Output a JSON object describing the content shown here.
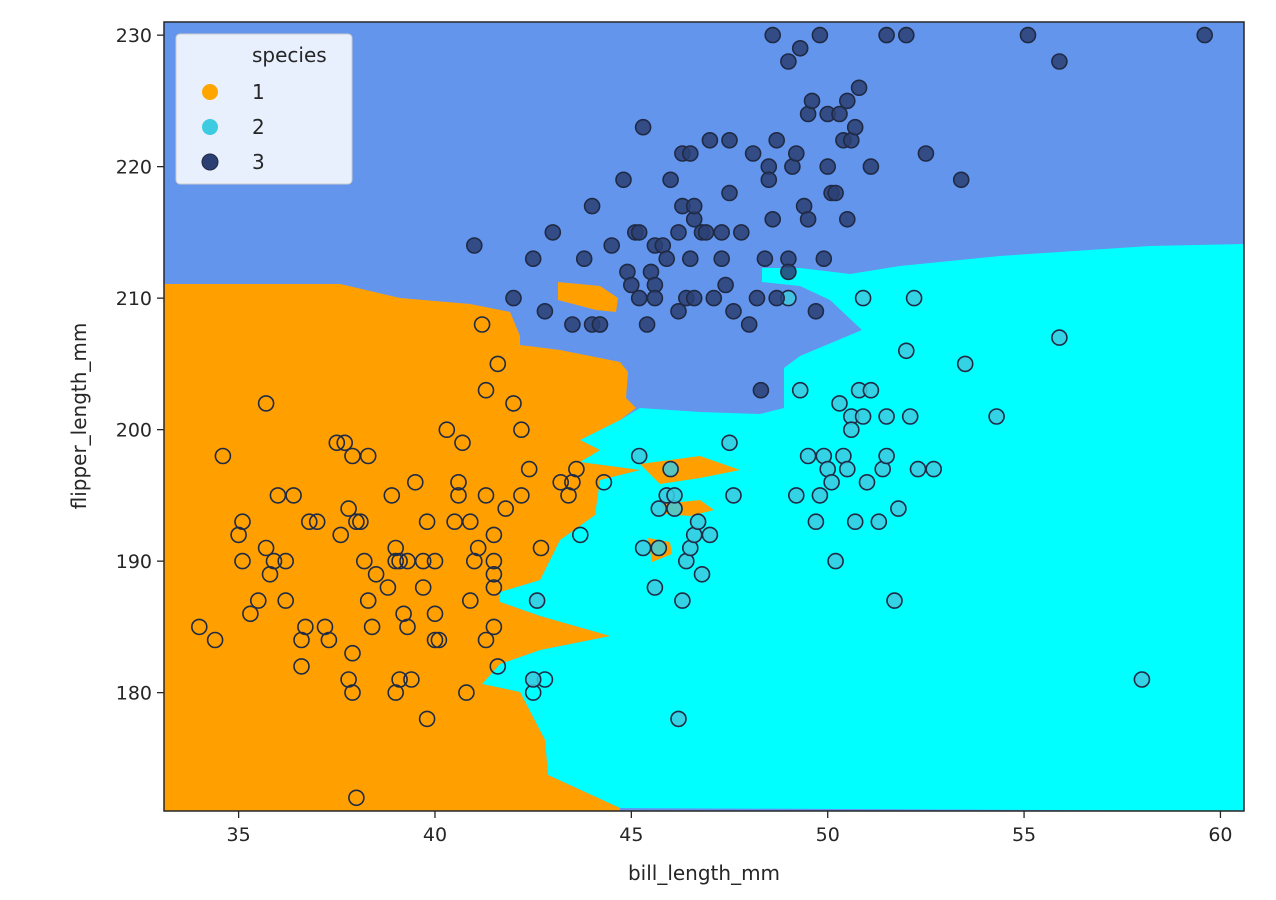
{
  "chart_data": {
    "type": "scatter",
    "title": "",
    "xlabel": "bill_length_mm",
    "ylabel": "flipper_length_mm",
    "xlim": [
      33.1,
      60.6
    ],
    "ylim": [
      171,
      231
    ],
    "xticks": [
      35,
      40,
      45,
      50,
      55,
      60
    ],
    "yticks": [
      180,
      190,
      200,
      210,
      220,
      230
    ],
    "grid": false,
    "legend": {
      "title": "species",
      "placement": "top-left"
    },
    "background_regions": [
      {
        "class": "1",
        "color": "#ffa000"
      },
      {
        "class": "2",
        "color": "#00ffff"
      },
      {
        "class": "3",
        "color": "#6495ed"
      }
    ],
    "series": [
      {
        "name": "1",
        "color": "#ffa500",
        "points": [
          [
            34.0,
            185
          ],
          [
            34.4,
            184
          ],
          [
            34.6,
            198
          ],
          [
            35.1,
            193
          ],
          [
            35.0,
            192
          ],
          [
            35.1,
            190
          ],
          [
            35.3,
            186
          ],
          [
            35.5,
            187
          ],
          [
            35.7,
            191
          ],
          [
            35.7,
            202
          ],
          [
            35.8,
            189
          ],
          [
            35.9,
            190
          ],
          [
            36.0,
            195
          ],
          [
            36.2,
            190
          ],
          [
            36.2,
            187
          ],
          [
            36.4,
            195
          ],
          [
            36.6,
            184
          ],
          [
            36.6,
            182
          ],
          [
            36.7,
            185
          ],
          [
            36.8,
            193
          ],
          [
            37.0,
            193
          ],
          [
            37.2,
            185
          ],
          [
            37.3,
            184
          ],
          [
            37.5,
            199
          ],
          [
            37.6,
            192
          ],
          [
            37.7,
            199
          ],
          [
            37.8,
            194
          ],
          [
            37.8,
            181
          ],
          [
            37.9,
            198
          ],
          [
            38.0,
            193
          ],
          [
            37.9,
            180
          ],
          [
            37.9,
            183
          ],
          [
            38.1,
            193
          ],
          [
            38.2,
            190
          ],
          [
            38.3,
            198
          ],
          [
            38.3,
            187
          ],
          [
            38.4,
            185
          ],
          [
            38.5,
            189
          ],
          [
            38.8,
            188
          ],
          [
            38.9,
            195
          ],
          [
            39.0,
            190
          ],
          [
            39.0,
            191
          ],
          [
            39.1,
            190
          ],
          [
            39.0,
            180
          ],
          [
            39.1,
            181
          ],
          [
            39.3,
            185
          ],
          [
            39.2,
            186
          ],
          [
            39.3,
            190
          ],
          [
            39.4,
            181
          ],
          [
            39.5,
            196
          ],
          [
            39.7,
            190
          ],
          [
            39.7,
            188
          ],
          [
            39.8,
            178
          ],
          [
            40.0,
            190
          ],
          [
            40.0,
            186
          ],
          [
            39.8,
            193
          ],
          [
            40.0,
            184
          ],
          [
            40.1,
            184
          ],
          [
            40.3,
            200
          ],
          [
            40.5,
            193
          ],
          [
            40.6,
            196
          ],
          [
            40.6,
            195
          ],
          [
            40.8,
            180
          ],
          [
            40.9,
            193
          ],
          [
            40.9,
            187
          ],
          [
            40.7,
            199
          ],
          [
            41.0,
            190
          ],
          [
            41.1,
            191
          ],
          [
            41.2,
            208
          ],
          [
            41.3,
            195
          ],
          [
            41.3,
            203
          ],
          [
            41.3,
            184
          ],
          [
            41.5,
            192
          ],
          [
            41.5,
            190
          ],
          [
            41.5,
            189
          ],
          [
            41.5,
            188
          ],
          [
            41.6,
            205
          ],
          [
            41.6,
            182
          ],
          [
            41.8,
            194
          ],
          [
            41.5,
            185
          ],
          [
            42.0,
            202
          ],
          [
            42.2,
            195
          ],
          [
            42.2,
            200
          ],
          [
            42.4,
            197
          ],
          [
            42.5,
            180
          ],
          [
            42.7,
            191
          ],
          [
            42.8,
            181
          ],
          [
            43.2,
            196
          ],
          [
            43.4,
            195
          ],
          [
            43.5,
            196
          ],
          [
            43.6,
            197
          ],
          [
            43.7,
            192
          ],
          [
            44.2,
            208
          ],
          [
            44.3,
            196
          ],
          [
            38.0,
            172
          ]
        ]
      },
      {
        "name": "2",
        "color": "#3ccbe0",
        "points": [
          [
            45.3,
            191
          ],
          [
            45.2,
            198
          ],
          [
            45.6,
            188
          ],
          [
            45.7,
            191
          ],
          [
            45.7,
            194
          ],
          [
            45.9,
            195
          ],
          [
            46.0,
            197
          ],
          [
            46.1,
            194
          ],
          [
            46.1,
            195
          ],
          [
            46.3,
            187
          ],
          [
            46.2,
            178
          ],
          [
            46.4,
            190
          ],
          [
            46.5,
            191
          ],
          [
            46.6,
            192
          ],
          [
            46.7,
            193
          ],
          [
            46.8,
            189
          ],
          [
            47.0,
            192
          ],
          [
            47.5,
            199
          ],
          [
            47.6,
            195
          ],
          [
            42.6,
            187
          ],
          [
            42.5,
            181
          ],
          [
            49.0,
            210
          ],
          [
            49.2,
            195
          ],
          [
            49.3,
            203
          ],
          [
            49.5,
            198
          ],
          [
            49.7,
            193
          ],
          [
            49.8,
            195
          ],
          [
            49.9,
            198
          ],
          [
            50.0,
            197
          ],
          [
            50.1,
            196
          ],
          [
            50.2,
            190
          ],
          [
            50.3,
            202
          ],
          [
            50.4,
            198
          ],
          [
            50.5,
            197
          ],
          [
            50.6,
            201
          ],
          [
            50.6,
            200
          ],
          [
            50.7,
            193
          ],
          [
            50.8,
            203
          ],
          [
            50.9,
            210
          ],
          [
            50.9,
            201
          ],
          [
            51.0,
            196
          ],
          [
            51.1,
            203
          ],
          [
            51.3,
            193
          ],
          [
            51.4,
            197
          ],
          [
            51.5,
            198
          ],
          [
            51.5,
            201
          ],
          [
            51.7,
            187
          ],
          [
            51.8,
            194
          ],
          [
            52.0,
            206
          ],
          [
            52.1,
            201
          ],
          [
            52.2,
            210
          ],
          [
            52.3,
            197
          ],
          [
            52.7,
            197
          ],
          [
            53.5,
            205
          ],
          [
            54.3,
            201
          ],
          [
            55.9,
            207
          ],
          [
            58.0,
            181
          ]
        ]
      },
      {
        "name": "3",
        "color": "#2b3f73",
        "points": [
          [
            41.0,
            214
          ],
          [
            42.0,
            210
          ],
          [
            42.5,
            213
          ],
          [
            42.8,
            209
          ],
          [
            43.0,
            215
          ],
          [
            43.5,
            208
          ],
          [
            43.8,
            213
          ],
          [
            44.0,
            217
          ],
          [
            44.0,
            208
          ],
          [
            44.2,
            208
          ],
          [
            44.5,
            214
          ],
          [
            44.8,
            219
          ],
          [
            44.9,
            212
          ],
          [
            45.0,
            211
          ],
          [
            45.1,
            215
          ],
          [
            45.2,
            210
          ],
          [
            45.2,
            215
          ],
          [
            45.3,
            223
          ],
          [
            45.4,
            208
          ],
          [
            45.5,
            212
          ],
          [
            45.6,
            214
          ],
          [
            45.6,
            211
          ],
          [
            45.6,
            210
          ],
          [
            45.8,
            214
          ],
          [
            45.9,
            213
          ],
          [
            46.0,
            219
          ],
          [
            46.2,
            215
          ],
          [
            46.3,
            221
          ],
          [
            46.3,
            217
          ],
          [
            46.2,
            209
          ],
          [
            46.4,
            210
          ],
          [
            46.5,
            221
          ],
          [
            46.6,
            216
          ],
          [
            46.5,
            213
          ],
          [
            46.6,
            210
          ],
          [
            46.6,
            217
          ],
          [
            46.8,
            215
          ],
          [
            46.9,
            215
          ],
          [
            47.0,
            222
          ],
          [
            47.1,
            210
          ],
          [
            47.3,
            213
          ],
          [
            47.3,
            215
          ],
          [
            47.4,
            211
          ],
          [
            47.5,
            222
          ],
          [
            47.5,
            218
          ],
          [
            47.6,
            209
          ],
          [
            47.8,
            215
          ],
          [
            48.0,
            208
          ],
          [
            48.1,
            221
          ],
          [
            48.2,
            210
          ],
          [
            48.4,
            213
          ],
          [
            48.5,
            220
          ],
          [
            48.5,
            219
          ],
          [
            48.6,
            230
          ],
          [
            48.6,
            216
          ],
          [
            48.7,
            222
          ],
          [
            48.7,
            210
          ],
          [
            49.0,
            213
          ],
          [
            49.0,
            228
          ],
          [
            49.0,
            212
          ],
          [
            49.1,
            220
          ],
          [
            49.2,
            221
          ],
          [
            49.3,
            229
          ],
          [
            49.4,
            217
          ],
          [
            49.5,
            216
          ],
          [
            49.5,
            224
          ],
          [
            49.6,
            225
          ],
          [
            49.7,
            209
          ],
          [
            49.8,
            230
          ],
          [
            49.9,
            213
          ],
          [
            50.0,
            220
          ],
          [
            50.0,
            224
          ],
          [
            50.1,
            218
          ],
          [
            50.2,
            218
          ],
          [
            50.3,
            224
          ],
          [
            50.4,
            222
          ],
          [
            50.5,
            225
          ],
          [
            50.5,
            216
          ],
          [
            50.6,
            222
          ],
          [
            50.7,
            223
          ],
          [
            50.8,
            226
          ],
          [
            51.1,
            220
          ],
          [
            52.0,
            230
          ],
          [
            52.5,
            221
          ],
          [
            51.5,
            230
          ],
          [
            53.4,
            219
          ],
          [
            55.1,
            230
          ],
          [
            55.9,
            228
          ],
          [
            59.6,
            230
          ],
          [
            48.3,
            203
          ]
        ]
      }
    ]
  }
}
